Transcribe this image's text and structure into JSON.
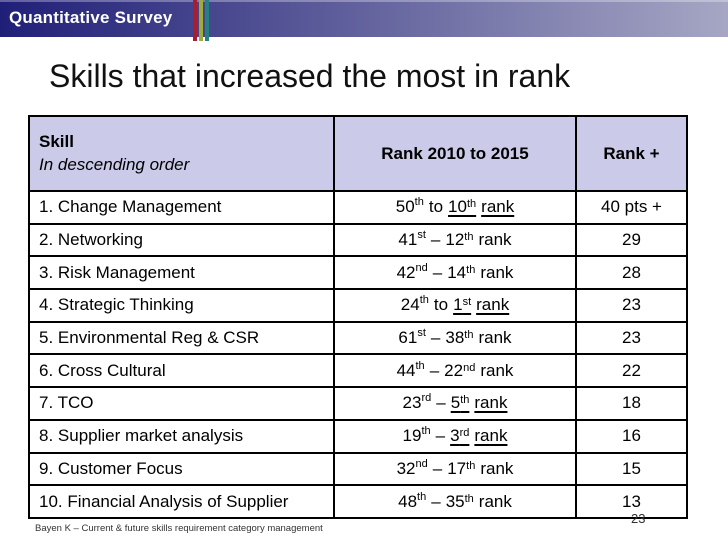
{
  "banner": {
    "label": "Quantitative Survey"
  },
  "title": "Skills that increased the most in rank",
  "table": {
    "header": {
      "skill_line1": "Skill",
      "skill_line2": "In descending order",
      "rank_range": "Rank 2010 to 2015",
      "rank_plus": "Rank +"
    },
    "rows": [
      {
        "skill": "1. Change Management",
        "from_num": "50",
        "from_sup": "th",
        "connector": "to",
        "to_num": "10",
        "to_sup": "th",
        "rank_word": "rank",
        "underline": "true",
        "gain": "40 pts +"
      },
      {
        "skill": "2. Networking",
        "from_num": "41",
        "from_sup": "st",
        "connector": "–",
        "to_num": "12",
        "to_sup": "th",
        "rank_word": "rank",
        "underline": "false",
        "gain": "29"
      },
      {
        "skill": "3. Risk Management",
        "from_num": "42",
        "from_sup": "nd",
        "connector": "–",
        "to_num": "14",
        "to_sup": "th",
        "rank_word": "rank",
        "underline": "false",
        "gain": "28"
      },
      {
        "skill": "4. Strategic Thinking",
        "from_num": "24",
        "from_sup": "th",
        "connector": "to",
        "to_num": "1",
        "to_sup": "st",
        "rank_word": "rank",
        "underline": "true",
        "gain": "23"
      },
      {
        "skill": "5. Environmental Reg & CSR",
        "from_num": "61",
        "from_sup": "st",
        "connector": "–",
        "to_num": "38",
        "to_sup": "th",
        "rank_word": "rank",
        "underline": "false",
        "gain": "23"
      },
      {
        "skill": "6. Cross Cultural",
        "from_num": "44",
        "from_sup": "th",
        "connector": "–",
        "to_num": "22",
        "to_sup": "nd",
        "rank_word": "rank",
        "underline": "false",
        "gain": "22"
      },
      {
        "skill": "7. TCO",
        "from_num": "23",
        "from_sup": "rd",
        "connector": "–",
        "to_num": "5",
        "to_sup": "th",
        "rank_word": "rank",
        "underline": "true",
        "gain": "18"
      },
      {
        "skill": "8. Supplier market analysis",
        "from_num": "19",
        "from_sup": "th",
        "connector": "–",
        "to_num": "3",
        "to_sup": "rd",
        "rank_word": "rank",
        "underline": "true",
        "gain": "16"
      },
      {
        "skill": "9. Customer Focus",
        "from_num": "32",
        "from_sup": "nd",
        "connector": "–",
        "to_num": "17",
        "to_sup": "th",
        "rank_word": "rank",
        "underline": "false",
        "gain": "15"
      },
      {
        "skill": "10. Financial Analysis of Supplier",
        "from_num": "48",
        "from_sup": "th",
        "connector": "–",
        "to_num": "35",
        "to_sup": "th",
        "rank_word": "rank",
        "underline": "false",
        "gain": "13"
      }
    ]
  },
  "footer": {
    "source": "Bayen K – Current & future skills requirement category management",
    "page_number": "23"
  },
  "colors": {
    "bar_start": "#201f78",
    "bar_end": "#a6a6c4",
    "stripe_red": "#a81e30",
    "stripe_green": "#9dac3c",
    "stripe_teal": "#26827e",
    "header_bg": "#cbcbe9",
    "border": "#000000",
    "title_color": "#111111"
  }
}
